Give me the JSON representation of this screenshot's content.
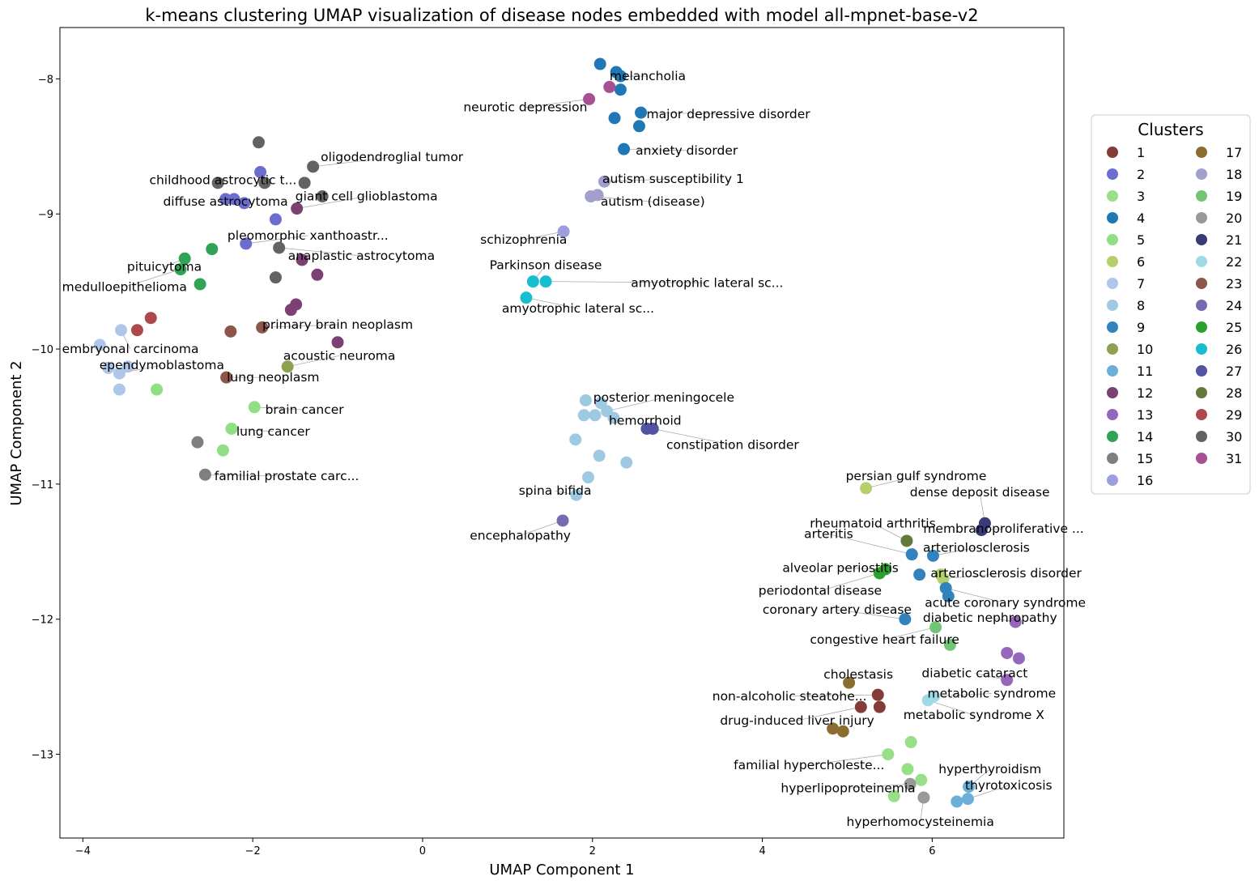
{
  "chart_data": {
    "type": "scatter",
    "title": "k-means clustering UMAP visualization of disease nodes embedded with model all-mpnet-base-v2",
    "xlabel": "UMAP Component 1",
    "ylabel": "UMAP Component 2",
    "xlim": [
      -4.27,
      7.55
    ],
    "ylim": [
      -13.62,
      -7.62
    ],
    "xticks": [
      "−4",
      "−2",
      "0",
      "2",
      "4",
      "6"
    ],
    "yticks": [
      "−8",
      "−9",
      "−10",
      "−11",
      "−12",
      "−13"
    ],
    "legend": {
      "title": "Clusters",
      "placement": "right-outside",
      "columns": 2
    },
    "clusters": [
      {
        "id": "1",
        "color": "#843c39",
        "points": [
          [
            5.36,
            -12.56
          ],
          [
            5.16,
            -12.65
          ],
          [
            5.38,
            -12.65
          ]
        ]
      },
      {
        "id": "2",
        "color": "#6b6ecf",
        "points": [
          [
            -1.91,
            -8.69
          ],
          [
            -2.32,
            -8.89
          ],
          [
            -2.22,
            -8.89
          ],
          [
            -2.1,
            -8.92
          ],
          [
            -1.73,
            -9.04
          ],
          [
            -2.08,
            -9.22
          ]
        ]
      },
      {
        "id": "3",
        "color": "#98df8a",
        "points": [
          [
            5.48,
            -13.0
          ],
          [
            5.75,
            -12.91
          ],
          [
            5.71,
            -13.11
          ],
          [
            5.87,
            -13.19
          ],
          [
            5.55,
            -13.31
          ]
        ]
      },
      {
        "id": "4",
        "color": "#1f77b4",
        "points": [
          [
            2.09,
            -7.89
          ],
          [
            2.28,
            -7.95
          ],
          [
            2.33,
            -7.98
          ],
          [
            2.33,
            -8.08
          ],
          [
            2.57,
            -8.25
          ],
          [
            2.26,
            -8.29
          ],
          [
            2.55,
            -8.35
          ],
          [
            2.37,
            -8.52
          ]
        ]
      },
      {
        "id": "5",
        "color": "#90df85",
        "points": [
          [
            -3.13,
            -10.3
          ],
          [
            -1.98,
            -10.43
          ],
          [
            -2.25,
            -10.59
          ],
          [
            -2.35,
            -10.75
          ]
        ]
      },
      {
        "id": "6",
        "color": "#b5cf6b",
        "points": [
          [
            5.22,
            -11.03
          ],
          [
            6.1,
            -11.67
          ],
          [
            6.13,
            -11.7
          ]
        ]
      },
      {
        "id": "7",
        "color": "#aec7e8",
        "points": [
          [
            -3.55,
            -9.86
          ],
          [
            -3.8,
            -9.97
          ],
          [
            -3.47,
            -10.13
          ],
          [
            -3.7,
            -10.14
          ],
          [
            -3.57,
            -10.18
          ],
          [
            -3.57,
            -10.3
          ]
        ]
      },
      {
        "id": "8",
        "color": "#9ecae1",
        "points": [
          [
            1.92,
            -10.38
          ],
          [
            2.1,
            -10.4
          ],
          [
            2.17,
            -10.46
          ],
          [
            1.9,
            -10.49
          ],
          [
            2.03,
            -10.49
          ],
          [
            2.25,
            -10.51
          ],
          [
            1.8,
            -10.67
          ],
          [
            2.08,
            -10.79
          ],
          [
            2.4,
            -10.84
          ],
          [
            1.95,
            -10.95
          ],
          [
            1.81,
            -11.08
          ]
        ]
      },
      {
        "id": "9",
        "color": "#3182bd",
        "points": [
          [
            5.76,
            -11.52
          ],
          [
            6.01,
            -11.53
          ],
          [
            5.85,
            -11.67
          ],
          [
            6.16,
            -11.77
          ],
          [
            6.19,
            -11.83
          ],
          [
            5.68,
            -12.0
          ]
        ]
      },
      {
        "id": "10",
        "color": "#8ca252",
        "points": [
          [
            -1.59,
            -10.13
          ]
        ]
      },
      {
        "id": "11",
        "color": "#6baed6",
        "points": [
          [
            6.43,
            -13.24
          ],
          [
            6.29,
            -13.35
          ],
          [
            6.42,
            -13.33
          ]
        ]
      },
      {
        "id": "12",
        "color": "#7b4173",
        "points": [
          [
            -1.48,
            -8.96
          ],
          [
            -1.42,
            -9.34
          ],
          [
            -1.24,
            -9.45
          ],
          [
            -1.49,
            -9.67
          ],
          [
            -1.55,
            -9.71
          ],
          [
            -1.0,
            -9.95
          ]
        ]
      },
      {
        "id": "13",
        "color": "#9467bd",
        "points": [
          [
            6.98,
            -12.02
          ],
          [
            6.88,
            -12.25
          ],
          [
            7.02,
            -12.29
          ],
          [
            6.88,
            -12.45
          ]
        ]
      },
      {
        "id": "14",
        "color": "#31a354",
        "points": [
          [
            -2.8,
            -9.33
          ],
          [
            -2.48,
            -9.26
          ],
          [
            -2.85,
            -9.41
          ],
          [
            -2.62,
            -9.52
          ]
        ]
      },
      {
        "id": "15",
        "color": "#7f7f7f",
        "points": [
          [
            -2.65,
            -10.69
          ],
          [
            -2.56,
            -10.93
          ]
        ]
      },
      {
        "id": "16",
        "color": "#9c9ede",
        "points": [
          [
            1.66,
            -9.13
          ]
        ]
      },
      {
        "id": "17",
        "color": "#8c6d31",
        "points": [
          [
            5.02,
            -12.47
          ],
          [
            4.83,
            -12.81
          ],
          [
            4.95,
            -12.83
          ]
        ]
      },
      {
        "id": "18",
        "color": "#a29fcd",
        "points": [
          [
            2.14,
            -8.76
          ],
          [
            1.98,
            -8.87
          ],
          [
            2.06,
            -8.86
          ]
        ]
      },
      {
        "id": "19",
        "color": "#74c476",
        "points": [
          [
            6.04,
            -12.06
          ],
          [
            6.21,
            -12.19
          ]
        ]
      },
      {
        "id": "20",
        "color": "#999999",
        "points": [
          [
            5.74,
            -13.22
          ],
          [
            5.9,
            -13.32
          ]
        ]
      },
      {
        "id": "21",
        "color": "#393b79",
        "points": [
          [
            6.62,
            -11.29
          ],
          [
            6.58,
            -11.34
          ]
        ]
      },
      {
        "id": "22",
        "color": "#9edae5",
        "points": [
          [
            5.95,
            -12.6
          ],
          [
            6.02,
            -12.57
          ]
        ]
      },
      {
        "id": "23",
        "color": "#8c564b",
        "points": [
          [
            -2.26,
            -9.87
          ],
          [
            -1.89,
            -9.84
          ],
          [
            -2.31,
            -10.21
          ]
        ]
      },
      {
        "id": "24",
        "color": "#756bb1",
        "points": [
          [
            1.65,
            -11.27
          ]
        ]
      },
      {
        "id": "25",
        "color": "#2ca02c",
        "points": [
          [
            5.38,
            -11.66
          ],
          [
            5.45,
            -11.63
          ]
        ]
      },
      {
        "id": "26",
        "color": "#17becf",
        "points": [
          [
            1.3,
            -9.5
          ],
          [
            1.45,
            -9.5
          ],
          [
            1.22,
            -9.62
          ]
        ]
      },
      {
        "id": "27",
        "color": "#5254a3",
        "points": [
          [
            2.64,
            -10.59
          ],
          [
            2.71,
            -10.59
          ]
        ]
      },
      {
        "id": "28",
        "color": "#637939",
        "points": [
          [
            5.7,
            -11.42
          ]
        ]
      },
      {
        "id": "29",
        "color": "#ad494a",
        "points": [
          [
            -3.2,
            -9.77
          ],
          [
            -3.36,
            -9.86
          ]
        ]
      },
      {
        "id": "30",
        "color": "#636363",
        "points": [
          [
            -1.93,
            -8.47
          ],
          [
            -1.29,
            -8.65
          ],
          [
            -2.41,
            -8.77
          ],
          [
            -1.86,
            -8.77
          ],
          [
            -1.39,
            -8.77
          ],
          [
            -1.18,
            -8.87
          ],
          [
            -1.69,
            -9.25
          ],
          [
            -1.73,
            -9.47
          ]
        ]
      },
      {
        "id": "31",
        "color": "#a55194",
        "points": [
          [
            2.2,
            -8.06
          ],
          [
            1.96,
            -8.15
          ]
        ]
      }
    ],
    "annotations": [
      {
        "text": "melancholia",
        "x": 2.65,
        "y": -7.98,
        "px": 2.33,
        "py": -7.98,
        "anchor": "middle"
      },
      {
        "text": "neurotic depression",
        "x": 1.21,
        "y": -8.21,
        "px": 1.96,
        "py": -8.15,
        "anchor": "middle"
      },
      {
        "text": "major depressive disorder",
        "x": 3.6,
        "y": -8.26,
        "px": 2.57,
        "py": -8.25,
        "anchor": "middle"
      },
      {
        "text": "anxiety disorder",
        "x": 3.11,
        "y": -8.53,
        "px": 2.37,
        "py": -8.52,
        "anchor": "middle"
      },
      {
        "text": "autism susceptibility 1",
        "x": 2.95,
        "y": -8.74,
        "px": 2.14,
        "py": -8.76,
        "anchor": "middle"
      },
      {
        "text": "autism (disease)",
        "x": 2.71,
        "y": -8.91,
        "px": 1.98,
        "py": -8.87,
        "anchor": "middle"
      },
      {
        "text": "schizophrenia",
        "x": 1.19,
        "y": -9.19,
        "px": 1.66,
        "py": -9.13,
        "anchor": "middle"
      },
      {
        "text": "Parkinson disease",
        "x": 1.45,
        "y": -9.38,
        "px": 1.3,
        "py": -9.5,
        "anchor": "middle"
      },
      {
        "text": "amyotrophic lateral sc...",
        "x": 3.35,
        "y": -9.51,
        "px": 1.45,
        "py": -9.5,
        "anchor": "middle"
      },
      {
        "text": "amyotrophic lateral sc...",
        "x": 1.83,
        "y": -9.7,
        "px": 1.22,
        "py": -9.62,
        "anchor": "middle"
      },
      {
        "text": "oligodendroglial tumor",
        "x": -0.36,
        "y": -8.58,
        "px": -1.29,
        "py": -8.65,
        "anchor": "middle"
      },
      {
        "text": "childhood astrocytic t...",
        "x": -2.35,
        "y": -8.75,
        "px": -2.41,
        "py": -8.77,
        "anchor": "middle"
      },
      {
        "text": "giant cell glioblastoma",
        "x": -0.66,
        "y": -8.87,
        "px": -1.48,
        "py": -8.96,
        "anchor": "middle"
      },
      {
        "text": "diffuse astrocytoma",
        "x": -2.32,
        "y": -8.91,
        "px": -2.22,
        "py": -8.89,
        "anchor": "middle"
      },
      {
        "text": "pleomorphic xanthoastr...",
        "x": -1.35,
        "y": -9.16,
        "px": -2.08,
        "py": -9.22,
        "anchor": "middle"
      },
      {
        "text": "anaplastic astrocytoma",
        "x": -0.72,
        "y": -9.31,
        "px": -1.69,
        "py": -9.25,
        "anchor": "middle"
      },
      {
        "text": "pituicytoma",
        "x": -3.04,
        "y": -9.39,
        "px": -2.8,
        "py": -9.33,
        "anchor": "middle"
      },
      {
        "text": "medulloepithelioma",
        "x": -3.51,
        "y": -9.54,
        "px": -2.85,
        "py": -9.41,
        "anchor": "middle"
      },
      {
        "text": "primary brain neoplasm",
        "x": -1.0,
        "y": -9.82,
        "px": -1.89,
        "py": -9.84,
        "anchor": "middle"
      },
      {
        "text": "embryonal carcinoma",
        "x": -3.44,
        "y": -10.0,
        "px": -3.55,
        "py": -9.86,
        "anchor": "middle"
      },
      {
        "text": "ependymoblastoma",
        "x": -3.07,
        "y": -10.12,
        "px": -3.57,
        "py": -10.18,
        "anchor": "middle"
      },
      {
        "text": "acoustic neuroma",
        "x": -0.98,
        "y": -10.05,
        "px": -1.59,
        "py": -10.13,
        "anchor": "middle"
      },
      {
        "text": "lung neoplasm",
        "x": -1.76,
        "y": -10.21,
        "px": -2.31,
        "py": -10.21,
        "anchor": "middle"
      },
      {
        "text": "brain cancer",
        "x": -1.39,
        "y": -10.45,
        "px": -1.98,
        "py": -10.43,
        "anchor": "middle"
      },
      {
        "text": "lung cancer",
        "x": -1.76,
        "y": -10.61,
        "px": -2.25,
        "py": -10.59,
        "anchor": "middle"
      },
      {
        "text": "familial prostate carc...",
        "x": -1.6,
        "y": -10.94,
        "px": -2.56,
        "py": -10.93,
        "anchor": "middle"
      },
      {
        "text": "posterior meningocele",
        "x": 2.84,
        "y": -10.36,
        "px": 2.17,
        "py": -10.46,
        "anchor": "middle"
      },
      {
        "text": "hemorrhoid",
        "x": 2.62,
        "y": -10.53,
        "px": 2.64,
        "py": -10.59,
        "anchor": "middle"
      },
      {
        "text": "constipation disorder",
        "x": 3.65,
        "y": -10.71,
        "px": 2.71,
        "py": -10.59,
        "anchor": "middle"
      },
      {
        "text": "spina bifida",
        "x": 1.56,
        "y": -11.05,
        "px": 1.81,
        "py": -11.08,
        "anchor": "middle"
      },
      {
        "text": "encephalopathy",
        "x": 1.15,
        "y": -11.38,
        "px": 1.65,
        "py": -11.27,
        "anchor": "middle"
      },
      {
        "text": "persian gulf syndrome",
        "x": 5.81,
        "y": -10.94,
        "px": 5.22,
        "py": -11.03,
        "anchor": "middle"
      },
      {
        "text": "dense deposit disease",
        "x": 6.56,
        "y": -11.06,
        "px": 6.62,
        "py": -11.29,
        "anchor": "middle"
      },
      {
        "text": "rheumatoid arthritis",
        "x": 5.3,
        "y": -11.29,
        "px": 5.7,
        "py": -11.42,
        "anchor": "middle"
      },
      {
        "text": "arteritis",
        "x": 4.78,
        "y": -11.37,
        "px": 5.76,
        "py": -11.52,
        "anchor": "middle"
      },
      {
        "text": "membranoproliferative ...",
        "x": 6.84,
        "y": -11.33,
        "px": 6.58,
        "py": -11.34,
        "anchor": "middle"
      },
      {
        "text": "arteriolosclerosis",
        "x": 6.52,
        "y": -11.47,
        "px": 6.01,
        "py": -11.53,
        "anchor": "middle"
      },
      {
        "text": "alveolar periostitis",
        "x": 4.92,
        "y": -11.62,
        "px": 5.45,
        "py": -11.63,
        "anchor": "middle"
      },
      {
        "text": "arteriosclerosis disorder",
        "x": 6.87,
        "y": -11.66,
        "px": 6.13,
        "py": -11.7,
        "anchor": "middle"
      },
      {
        "text": "periodontal disease",
        "x": 4.68,
        "y": -11.79,
        "px": 5.38,
        "py": -11.66,
        "anchor": "middle"
      },
      {
        "text": "acute coronary syndrome",
        "x": 6.86,
        "y": -11.88,
        "px": 6.16,
        "py": -11.77,
        "anchor": "middle"
      },
      {
        "text": "coronary artery disease",
        "x": 4.88,
        "y": -11.93,
        "px": 5.68,
        "py": -12.0,
        "anchor": "middle"
      },
      {
        "text": "diabetic nephropathy",
        "x": 6.68,
        "y": -11.99,
        "px": 6.98,
        "py": -12.02,
        "anchor": "middle"
      },
      {
        "text": "congestive heart failure",
        "x": 5.44,
        "y": -12.15,
        "px": 6.04,
        "py": -12.06,
        "anchor": "middle"
      },
      {
        "text": "cholestasis",
        "x": 5.13,
        "y": -12.41,
        "px": 5.02,
        "py": -12.47,
        "anchor": "middle"
      },
      {
        "text": "diabetic cataract",
        "x": 6.5,
        "y": -12.4,
        "px": 6.88,
        "py": -12.45,
        "anchor": "middle"
      },
      {
        "text": "non-alcoholic steatohe...",
        "x": 4.32,
        "y": -12.57,
        "px": 5.36,
        "py": -12.56,
        "anchor": "middle"
      },
      {
        "text": "metabolic syndrome",
        "x": 6.7,
        "y": -12.55,
        "px": 6.02,
        "py": -12.57,
        "anchor": "middle"
      },
      {
        "text": "metabolic syndrome X",
        "x": 6.49,
        "y": -12.71,
        "px": 5.95,
        "py": -12.6,
        "anchor": "middle"
      },
      {
        "text": "drug-induced liver injury",
        "x": 4.41,
        "y": -12.75,
        "px": 5.16,
        "py": -12.65,
        "anchor": "middle"
      },
      {
        "text": "familial hypercholeste...",
        "x": 4.55,
        "y": -13.08,
        "px": 5.48,
        "py": -13.0,
        "anchor": "middle"
      },
      {
        "text": "hyperthyroidism",
        "x": 6.68,
        "y": -13.11,
        "px": 6.43,
        "py": -13.24,
        "anchor": "middle"
      },
      {
        "text": "hyperlipoproteinemia",
        "x": 5.01,
        "y": -13.25,
        "px": 5.74,
        "py": -13.22,
        "anchor": "middle"
      },
      {
        "text": "thyrotoxicosis",
        "x": 6.9,
        "y": -13.23,
        "px": 6.42,
        "py": -13.33,
        "anchor": "middle"
      },
      {
        "text": "hyperhomocysteinemia",
        "x": 5.86,
        "y": -13.5,
        "px": 5.9,
        "py": -13.32,
        "anchor": "middle"
      }
    ]
  }
}
